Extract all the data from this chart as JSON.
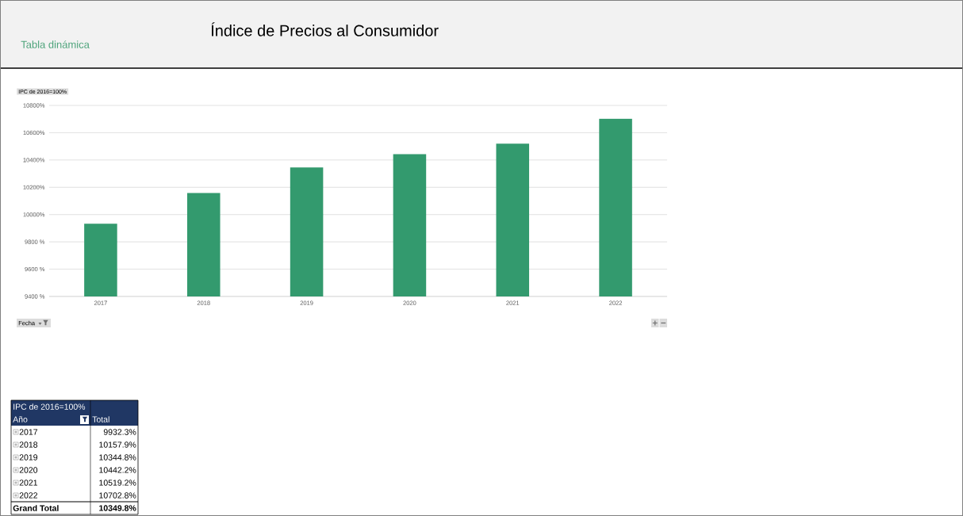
{
  "chart_data": {
    "type": "bar",
    "title": "Índice de Precios al Consumidor",
    "ylabel": "IPC de 2016=100%",
    "xlabel": "Fecha",
    "categories": [
      "2017",
      "2018",
      "2019",
      "2020",
      "2021",
      "2022"
    ],
    "values": [
      9932.3,
      10157.9,
      10344.8,
      10442.2,
      10519.2,
      10702.8
    ],
    "color": "#339a6e",
    "ylim": [
      9400,
      10800
    ],
    "yticks": [
      {
        "value": 9400,
        "label": "9400 %"
      },
      {
        "value": 9600,
        "label": "9600 %"
      },
      {
        "value": 9800,
        "label": "9800 %"
      },
      {
        "value": 10000,
        "label": "10000%"
      },
      {
        "value": 10200,
        "label": "10200%"
      },
      {
        "value": 10400,
        "label": "10400%"
      },
      {
        "value": 10600,
        "label": "10600%"
      },
      {
        "value": 10800,
        "label": "10800%"
      }
    ],
    "grid": "y",
    "annotations": [
      "Tabla dinámica",
      "Año",
      "Total",
      "9932.3%",
      "10157.9%",
      "10344.8%",
      "10442.2%",
      "10519.2%",
      "10702.8%",
      "Grand Total",
      "10349.8%"
    ]
  }
}
